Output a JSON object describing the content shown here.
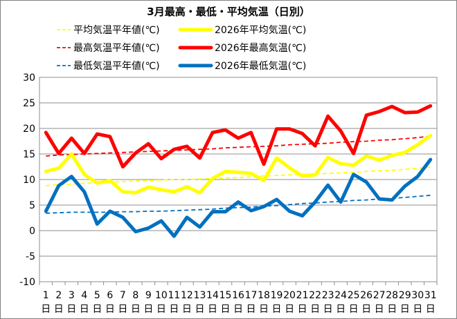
{
  "chart_data": {
    "type": "line",
    "title": "3月最高・最低・平均気温（日別）",
    "xlabel": "",
    "ylabel": "",
    "ylim": [
      -10,
      30
    ],
    "yticks": [
      30,
      25,
      20,
      15,
      10,
      5,
      0,
      -5,
      -10
    ],
    "grid": true,
    "legend_position": "top",
    "day_suffix": "日",
    "categories": [
      1,
      2,
      3,
      4,
      5,
      6,
      7,
      8,
      9,
      10,
      11,
      12,
      13,
      14,
      15,
      16,
      17,
      18,
      19,
      20,
      21,
      22,
      23,
      24,
      25,
      26,
      27,
      28,
      29,
      30,
      31
    ],
    "series": [
      {
        "name": "平均気温平年値(℃)",
        "style": "dashed",
        "color": "#FFFF00",
        "values": [
          8.8,
          9.0,
          9.1,
          9.3,
          9.3,
          9.5,
          9.6,
          9.7,
          9.8,
          9.9,
          10.0,
          10.0,
          10.1,
          10.2,
          10.3,
          10.4,
          10.5,
          10.7,
          10.8,
          10.9,
          11.0,
          11.1,
          11.2,
          11.3,
          11.4,
          11.6,
          11.7,
          11.8,
          12.0,
          12.2,
          12.4
        ]
      },
      {
        "name": "2026年平均気温(℃)",
        "style": "solid",
        "color": "#FFFF00",
        "values": [
          11.6,
          12.2,
          15.0,
          11.0,
          9.3,
          9.8,
          7.6,
          7.4,
          8.5,
          8.0,
          7.6,
          8.6,
          7.4,
          10.2,
          11.6,
          11.4,
          11.2,
          9.8,
          14.2,
          12.3,
          10.7,
          10.9,
          14.3,
          13.1,
          12.8,
          14.6,
          13.8,
          14.7,
          15.3,
          16.8,
          18.6
        ]
      },
      {
        "name": "最高気温平年値(℃)",
        "style": "dashed",
        "color": "#FF0000",
        "values": [
          14.6,
          14.8,
          14.9,
          15.0,
          15.1,
          15.2,
          15.3,
          15.4,
          15.5,
          15.6,
          15.7,
          15.8,
          15.9,
          16.0,
          16.2,
          16.3,
          16.4,
          16.5,
          16.6,
          16.8,
          16.9,
          17.0,
          17.1,
          17.3,
          17.4,
          17.5,
          17.7,
          17.8,
          18.0,
          18.2,
          18.5
        ]
      },
      {
        "name": "2026年最高気温(℃)",
        "style": "solid",
        "color": "#FF0000",
        "values": [
          19.2,
          15.1,
          18.1,
          15.1,
          18.9,
          18.4,
          12.5,
          15.2,
          17.0,
          14.1,
          15.9,
          16.5,
          14.2,
          19.2,
          19.7,
          18.1,
          19.2,
          13.0,
          19.9,
          19.9,
          19.0,
          16.6,
          22.4,
          19.5,
          15.1,
          22.6,
          23.3,
          24.3,
          23.1,
          23.2,
          24.4
        ]
      },
      {
        "name": "最低気温平年値(℃)",
        "style": "dashed",
        "color": "#0070C0",
        "values": [
          3.4,
          3.5,
          3.6,
          3.6,
          3.6,
          3.6,
          3.7,
          3.7,
          3.8,
          3.8,
          3.9,
          4.0,
          4.1,
          4.2,
          4.4,
          4.5,
          4.6,
          4.8,
          4.9,
          5.1,
          5.3,
          5.4,
          5.6,
          5.7,
          5.9,
          6.0,
          6.2,
          6.3,
          6.5,
          6.7,
          6.9
        ]
      },
      {
        "name": "2026年最低気温(℃)",
        "style": "solid",
        "color": "#0070C0",
        "values": [
          3.8,
          8.8,
          10.6,
          7.6,
          1.3,
          3.8,
          2.6,
          -0.2,
          0.5,
          1.9,
          -1.1,
          2.6,
          0.7,
          3.7,
          3.7,
          5.6,
          3.9,
          4.7,
          6.1,
          3.8,
          2.9,
          5.6,
          8.9,
          5.6,
          11.0,
          9.5,
          6.2,
          6.0,
          8.7,
          10.6,
          13.9
        ]
      }
    ]
  }
}
